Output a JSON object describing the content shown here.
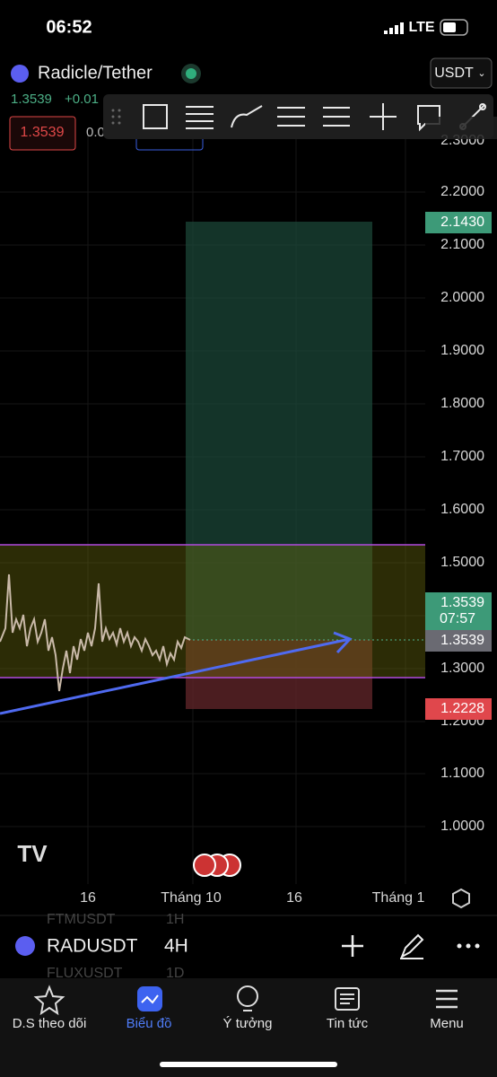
{
  "status_bar": {
    "time": "06:52",
    "network": "LTE"
  },
  "header": {
    "symbol_name": "Radicle/Tether",
    "currency": "USDT",
    "price": "1.3539",
    "change": "+0.01",
    "order_price": "1.3539",
    "order_extra": "0.0"
  },
  "price_axis": {
    "labels": [
      "2.3000",
      "2.2000",
      "2.1000",
      "2.0000",
      "1.9000",
      "1.8000",
      "1.7000",
      "1.6000",
      "1.5000",
      "1.3000",
      "1.2000",
      "1.1000",
      "1.0000"
    ]
  },
  "price_tags": [
    {
      "text": "2.1430"
    },
    {
      "text": "1.3539",
      "sub": "07:57"
    },
    {
      "text": "1.3539"
    },
    {
      "text": "1.2228"
    }
  ],
  "time_axis": {
    "labels": [
      "16",
      "Tháng 10",
      "16",
      "Tháng 1"
    ]
  },
  "symbol_bar": {
    "symbol": "RADUSDT",
    "interval": "4H"
  },
  "watchlist_peek": [
    {
      "symbol": "FTMUSDT",
      "interval": "1H"
    },
    {
      "symbol": "FLUXUSDT",
      "interval": "1D"
    }
  ],
  "tabs": [
    {
      "label": "D.S theo dõi"
    },
    {
      "label": "Biểu đồ"
    },
    {
      "label": "Ý tưởng"
    },
    {
      "label": "Tin tức"
    },
    {
      "label": "Menu"
    }
  ]
}
